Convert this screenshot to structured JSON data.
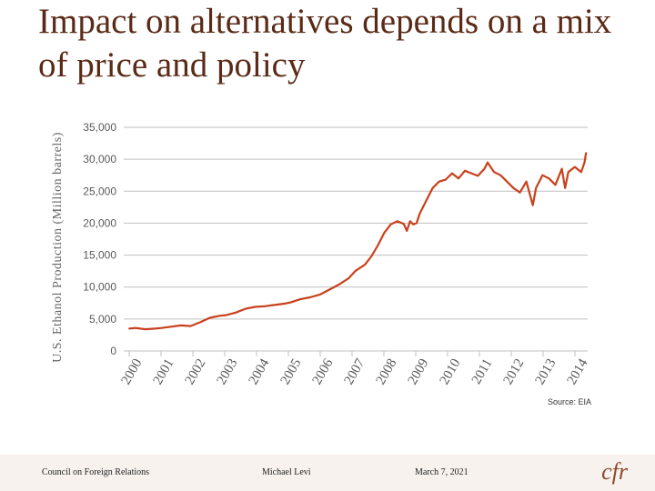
{
  "slide": {
    "title": "Impact on alternatives depends on a mix of price and policy",
    "source": "Source: EIA"
  },
  "footer": {
    "org": "Council on Foreign Relations",
    "author": "Michael Levi",
    "date": "March 7, 2021",
    "logo_text": "cfr"
  },
  "colors": {
    "series": "#c9401c",
    "axis": "#bfbfbf",
    "title": "#5a2a16"
  },
  "chart_data": {
    "type": "line",
    "title": "",
    "xlabel": "",
    "ylabel": "U.S. Ethanol Production (Million barrels)",
    "ylim": [
      0,
      35000
    ],
    "xlim": [
      2000,
      2014.2
    ],
    "yticks": [
      "0",
      "5,000",
      "10,000",
      "15,000",
      "20,000",
      "25,000",
      "30,000",
      "35,000"
    ],
    "ytick_values": [
      0,
      5000,
      10000,
      15000,
      20000,
      25000,
      30000,
      35000
    ],
    "xticks": [
      "2000",
      "2001",
      "2002",
      "2003",
      "2004",
      "2005",
      "2006",
      "2007",
      "2008",
      "2009",
      "2010",
      "2011",
      "2012",
      "2013",
      "2014"
    ],
    "series": [
      {
        "name": "U.S. Ethanol Production",
        "x": [
          2000.0,
          2000.2,
          2000.5,
          2000.8,
          2001.0,
          2001.3,
          2001.6,
          2001.9,
          2002.2,
          2002.5,
          2002.8,
          2003.0,
          2003.3,
          2003.6,
          2003.9,
          2004.2,
          2004.5,
          2004.8,
          2005.0,
          2005.3,
          2005.6,
          2005.9,
          2006.2,
          2006.5,
          2006.8,
          2007.0,
          2007.3,
          2007.5,
          2007.7,
          2007.9,
          2008.1,
          2008.3,
          2008.5,
          2008.6,
          2008.7,
          2008.8,
          2008.9,
          2009.0,
          2009.2,
          2009.4,
          2009.6,
          2009.8,
          2010.0,
          2010.2,
          2010.4,
          2010.6,
          2010.8,
          2011.0,
          2011.1,
          2011.3,
          2011.5,
          2011.7,
          2011.9,
          2012.1,
          2012.3,
          2012.5,
          2012.6,
          2012.7,
          2012.8,
          2013.0,
          2013.2,
          2013.4,
          2013.5,
          2013.6,
          2013.8,
          2014.0,
          2014.1,
          2014.15
        ],
        "values": [
          3500,
          3600,
          3400,
          3500,
          3600,
          3800,
          4000,
          3900,
          4500,
          5200,
          5500,
          5600,
          6000,
          6600,
          6900,
          7000,
          7200,
          7400,
          7600,
          8100,
          8400,
          8800,
          9600,
          10400,
          11400,
          12500,
          13500,
          14800,
          16500,
          18500,
          19800,
          20300,
          19900,
          18800,
          20300,
          19800,
          20000,
          21500,
          23500,
          25500,
          26500,
          26800,
          27800,
          27000,
          28200,
          27800,
          27400,
          28500,
          29500,
          28000,
          27500,
          26500,
          25500,
          24800,
          26500,
          22800,
          25500,
          26500,
          27500,
          27000,
          26000,
          28500,
          25500,
          28000,
          28800,
          28000,
          29500,
          31000
        ]
      }
    ]
  }
}
